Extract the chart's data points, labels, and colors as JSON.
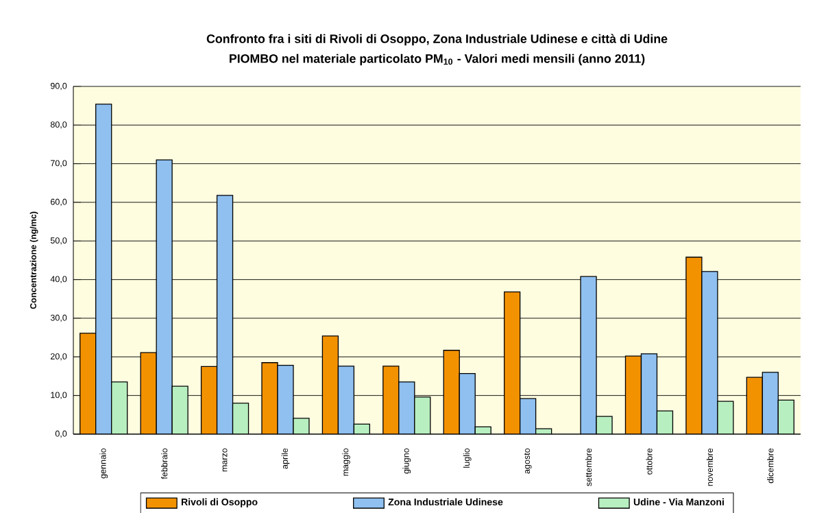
{
  "chart_data": {
    "type": "bar",
    "title": "Confronto fra i siti di Rivoli di Osoppo, Zona Industriale Udinese e città di Udine",
    "subtitle": "PIOMBO nel materiale particolato PM$_{10}$ - Valori medi mensili (anno 2011)",
    "ylabel": "Concentrazione (ng/mc)",
    "categories": [
      "gennaio",
      "febbraio",
      "marzo",
      "aprile",
      "maggio",
      "giugno",
      "luglio",
      "agosto",
      "settembre",
      "ottobre",
      "novembre",
      "dicembre"
    ],
    "series": [
      {
        "name": "Rivoli di Osoppo",
        "color": "#f39200",
        "values": [
          26.1,
          21.1,
          17.5,
          18.5,
          25.4,
          17.6,
          21.7,
          36.8,
          null,
          20.2,
          45.8,
          14.7
        ]
      },
      {
        "name": "Zona Industriale Udinese",
        "color": "#8fc0f0",
        "values": [
          85.4,
          71.0,
          61.8,
          17.8,
          17.6,
          13.5,
          15.7,
          9.2,
          40.8,
          20.8,
          42.1,
          16.0
        ]
      },
      {
        "name": "Udine - Via Manzoni",
        "color": "#b8efc0",
        "values": [
          13.5,
          12.4,
          8.0,
          4.1,
          2.6,
          9.6,
          1.9,
          1.4,
          4.6,
          6.0,
          8.5,
          8.8
        ]
      }
    ],
    "ylim": [
      0,
      90
    ],
    "yticks": [
      {
        "value": 0,
        "label": "0,0"
      },
      {
        "value": 10,
        "label": "10,0"
      },
      {
        "value": 20,
        "label": "20,0"
      },
      {
        "value": 30,
        "label": "30,0"
      },
      {
        "value": 40,
        "label": "40,0"
      },
      {
        "value": 50,
        "label": "50,0"
      },
      {
        "value": 60,
        "label": "60,0"
      },
      {
        "value": 70,
        "label": "70,0"
      },
      {
        "value": 80,
        "label": "80,0"
      },
      {
        "value": 90,
        "label": "90,0"
      }
    ],
    "grid": "y",
    "legend": "bottom"
  }
}
